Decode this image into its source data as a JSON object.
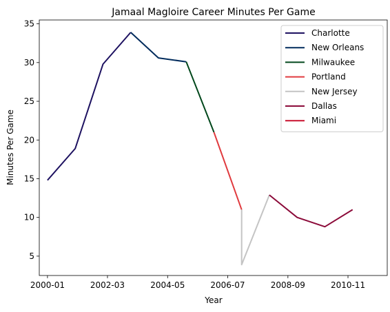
{
  "chart_data": {
    "type": "line",
    "title": "Jamaal Magloire Career Minutes Per Game",
    "xlabel": "Year",
    "ylabel": "Minutes Per Game",
    "x_axis_type": "date",
    "xlim": [
      "1999-09-15",
      "2012-04-01"
    ],
    "ylim": [
      2.5,
      35.5
    ],
    "x_ticks": [
      {
        "value": "2000-01-01",
        "label": "2000-01"
      },
      {
        "value": "2002-03-01",
        "label": "2002-03"
      },
      {
        "value": "2004-05-01",
        "label": "2004-05"
      },
      {
        "value": "2006-07-01",
        "label": "2006-07"
      },
      {
        "value": "2008-09-01",
        "label": "2008-09"
      },
      {
        "value": "2010-11-01",
        "label": "2010-11"
      }
    ],
    "y_ticks": [
      5,
      10,
      15,
      20,
      25,
      30,
      35
    ],
    "grid": false,
    "legend_position": "top-right",
    "series": [
      {
        "name": "Charlotte",
        "color": "#1d1160",
        "points": [
          {
            "x": "2000-01-01",
            "y": 14.8
          },
          {
            "x": "2001-01-01",
            "y": 18.9
          },
          {
            "x": "2002-01-01",
            "y": 29.8
          },
          {
            "x": "2003-01-01",
            "y": 33.9
          }
        ]
      },
      {
        "name": "New Orleans",
        "color": "#002b5c",
        "points": [
          {
            "x": "2003-01-01",
            "y": 33.9
          },
          {
            "x": "2004-01-01",
            "y": 30.6
          },
          {
            "x": "2005-01-01",
            "y": 30.1
          }
        ]
      },
      {
        "name": "Milwaukee",
        "color": "#00471b",
        "points": [
          {
            "x": "2005-01-01",
            "y": 30.1
          },
          {
            "x": "2006-01-01",
            "y": 21.0
          }
        ]
      },
      {
        "name": "Portland",
        "color": "#e03a3e",
        "points": [
          {
            "x": "2006-01-01",
            "y": 21.0
          },
          {
            "x": "2007-01-01",
            "y": 11.0
          }
        ]
      },
      {
        "name": "New Jersey",
        "color": "#c4c4c4",
        "points": [
          {
            "x": "2007-01-01",
            "y": 11.0
          },
          {
            "x": "2007-01-01",
            "y": 3.9
          },
          {
            "x": "2008-01-01",
            "y": 12.9
          }
        ]
      },
      {
        "name": "Dallas",
        "color": "#8b0a39",
        "points": [
          {
            "x": "2008-01-01",
            "y": 12.9
          },
          {
            "x": "2009-01-01",
            "y": 10.0
          },
          {
            "x": "2010-01-01",
            "y": 8.8
          },
          {
            "x": "2011-01-01",
            "y": 11.0
          }
        ]
      },
      {
        "name": "Miami",
        "color": "#c8102e",
        "points": []
      }
    ]
  }
}
